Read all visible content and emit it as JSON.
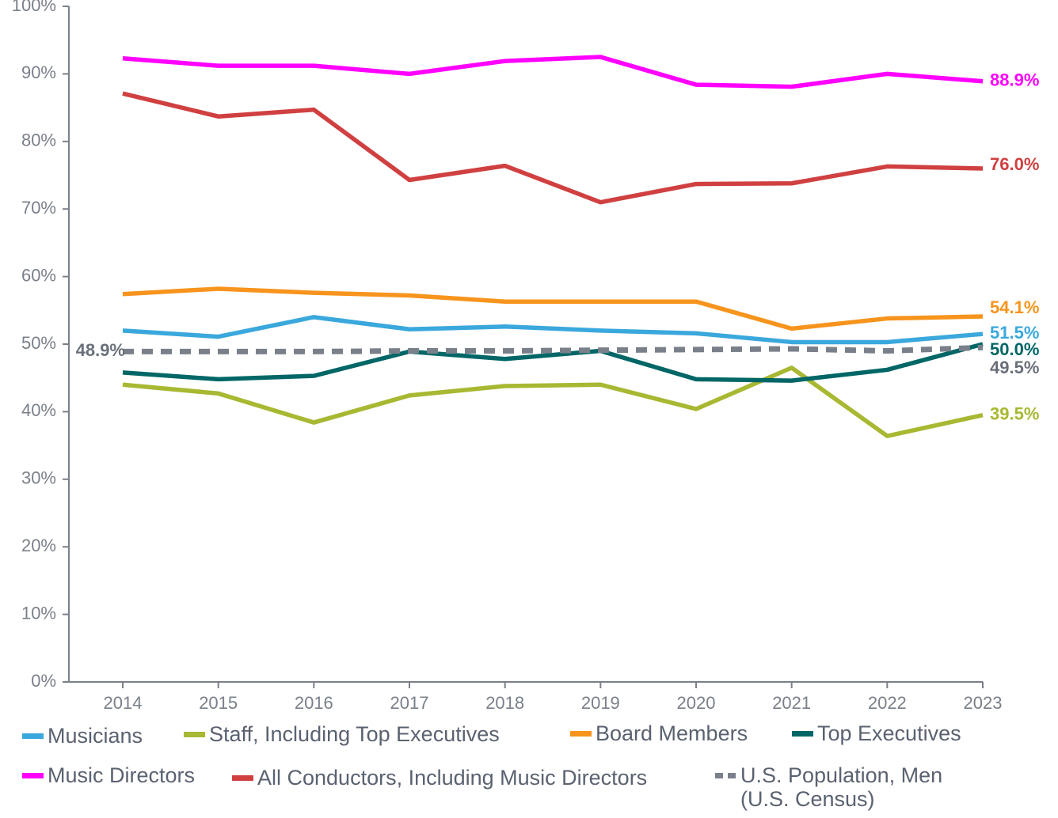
{
  "chart_data": {
    "type": "line",
    "categories": [
      "2014",
      "2015",
      "2016",
      "2017",
      "2018",
      "2019",
      "2020",
      "2021",
      "2022",
      "2023"
    ],
    "ylim": [
      0,
      100
    ],
    "yticks": [
      {
        "value": 0,
        "label": "0%"
      },
      {
        "value": 10,
        "label": "10%"
      },
      {
        "value": 20,
        "label": "20%"
      },
      {
        "value": 30,
        "label": "30%"
      },
      {
        "value": 40,
        "label": "40%"
      },
      {
        "value": 50,
        "label": "50%"
      },
      {
        "value": 60,
        "label": "60%"
      },
      {
        "value": 70,
        "label": "70%"
      },
      {
        "value": 80,
        "label": "80%"
      },
      {
        "value": 90,
        "label": "90%"
      },
      {
        "value": 100,
        "label": "100%"
      }
    ],
    "series": [
      {
        "name": "Musicians",
        "color": "#3aa8dc",
        "values": [
          52.0,
          51.1,
          54.0,
          52.2,
          52.6,
          52.0,
          51.6,
          50.3,
          50.3,
          51.5
        ],
        "value_labels": [
          null,
          null,
          null,
          null,
          null,
          null,
          null,
          null,
          null,
          "51.5%"
        ]
      },
      {
        "name": "Staff, Including Top Executives",
        "color": "#a8b832",
        "values": [
          44.0,
          42.7,
          38.4,
          42.4,
          43.8,
          44.0,
          40.4,
          46.5,
          36.4,
          39.5
        ],
        "value_labels": [
          null,
          null,
          null,
          null,
          null,
          null,
          null,
          null,
          null,
          "39.5%"
        ]
      },
      {
        "name": "Board Members",
        "color": "#f7941d",
        "values": [
          57.4,
          58.2,
          57.6,
          57.2,
          56.3,
          56.3,
          56.3,
          52.3,
          53.8,
          54.1
        ],
        "value_labels": [
          null,
          null,
          null,
          null,
          null,
          null,
          null,
          null,
          null,
          "54.1%"
        ]
      },
      {
        "name": "Top Executives",
        "color": "#006666",
        "values": [
          45.8,
          44.8,
          45.3,
          48.9,
          47.8,
          49.0,
          44.8,
          44.6,
          46.2,
          50.0
        ],
        "value_labels": [
          null,
          null,
          null,
          null,
          null,
          null,
          null,
          null,
          null,
          "50.0%"
        ]
      },
      {
        "name": "Music Directors",
        "color": "#ff00ff",
        "values": [
          92.3,
          91.2,
          91.2,
          90.0,
          91.9,
          92.5,
          88.4,
          88.1,
          90.0,
          88.9
        ],
        "value_labels": [
          null,
          null,
          null,
          null,
          null,
          null,
          null,
          null,
          null,
          "88.9%"
        ]
      },
      {
        "name": "All Conductors, Including Music Directors",
        "color": "#d04040",
        "values": [
          87.1,
          83.7,
          84.7,
          74.3,
          76.4,
          71.0,
          73.7,
          73.8,
          76.3,
          76.0
        ],
        "value_labels": [
          null,
          null,
          null,
          null,
          null,
          null,
          null,
          null,
          null,
          "76.0%"
        ]
      },
      {
        "name": "U.S. Population, Men (U.S. Census)",
        "color": "#7a808a",
        "dashed": true,
        "values": [
          48.9,
          48.9,
          48.9,
          49.0,
          49.0,
          49.1,
          49.2,
          49.3,
          49.0,
          49.5
        ],
        "value_labels": [
          "48.9%",
          null,
          null,
          null,
          null,
          null,
          null,
          null,
          null,
          "49.5%"
        ]
      }
    ]
  }
}
